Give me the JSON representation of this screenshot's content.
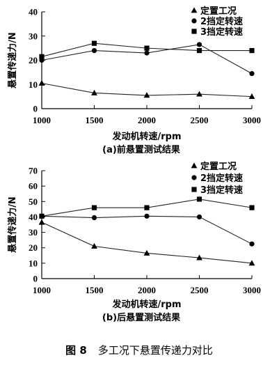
{
  "chart_data": [
    {
      "type": "line",
      "caption": "(a)前悬置测试结果",
      "xlabel": "发动机转速/rpm",
      "ylabel": "悬置传递力/N",
      "x": [
        1000,
        1500,
        2000,
        2500,
        3000
      ],
      "xticks": [
        "1000",
        "1500",
        "2000",
        "2500",
        "3000"
      ],
      "ylim": [
        0,
        40
      ],
      "yticks": [
        "0",
        "10",
        "20",
        "30",
        "40"
      ],
      "legend_position": "top-right",
      "series": [
        {
          "name": "定置工况",
          "marker": "triangle",
          "values": [
            10.5,
            6.5,
            5.5,
            6.0,
            5.0
          ]
        },
        {
          "name": "2挡定转速",
          "marker": "circle",
          "values": [
            20.0,
            24.0,
            23.0,
            26.5,
            14.5
          ]
        },
        {
          "name": "3挡定转速",
          "marker": "square",
          "values": [
            21.5,
            27.0,
            25.0,
            24.0,
            24.0
          ]
        }
      ]
    },
    {
      "type": "line",
      "caption": "(b)后悬置测试结果",
      "xlabel": "发动机转速/rpm",
      "ylabel": "悬置传递力/N",
      "x": [
        1000,
        1500,
        2000,
        2500,
        3000
      ],
      "xticks": [
        "1000",
        "1500",
        "2000",
        "2500",
        "3000"
      ],
      "ylim": [
        0,
        70
      ],
      "yticks": [
        "0",
        "10",
        "20",
        "30",
        "40",
        "50",
        "60",
        "70"
      ],
      "legend_position": "top-right",
      "series": [
        {
          "name": "定置工况",
          "marker": "triangle",
          "values": [
            36.5,
            21.0,
            16.5,
            13.5,
            10.0
          ]
        },
        {
          "name": "2挡定转速",
          "marker": "circle",
          "values": [
            40.5,
            39.5,
            40.5,
            40.0,
            22.5
          ]
        },
        {
          "name": "3挡定转速",
          "marker": "square",
          "values": [
            40.5,
            46.0,
            46.0,
            51.5,
            46.0
          ]
        }
      ]
    }
  ],
  "figure_caption": {
    "label": "图 8",
    "text": "多工况下悬置传递力对比"
  },
  "colors": {
    "ink": "#000000",
    "series_line": "#222222"
  }
}
